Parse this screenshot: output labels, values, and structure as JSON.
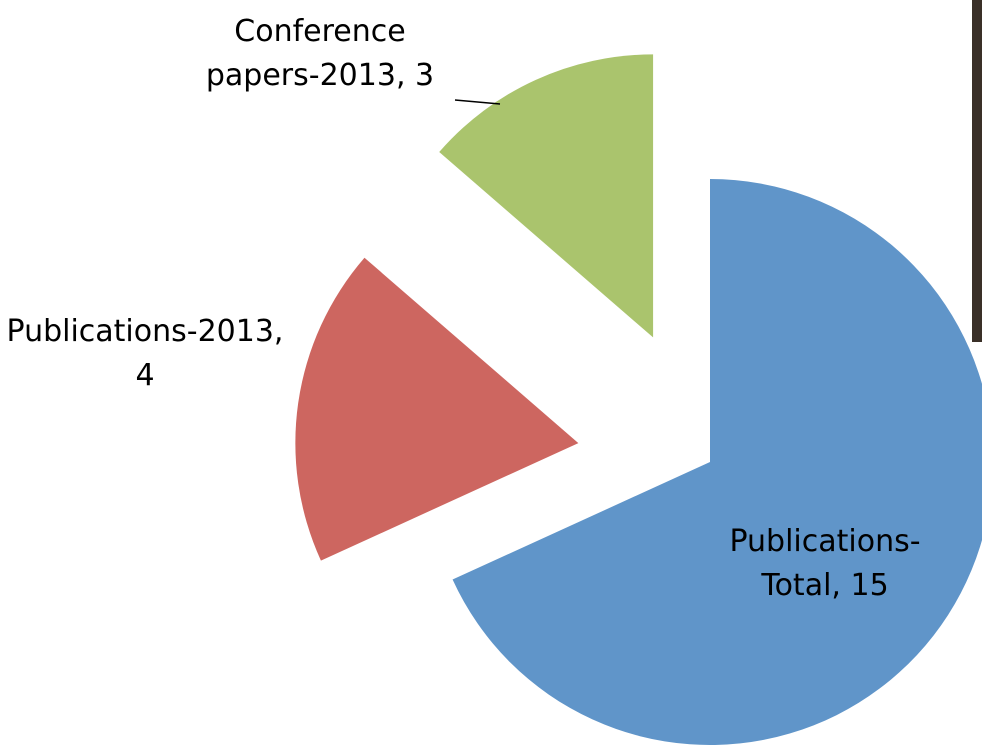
{
  "chart_data": {
    "type": "pie",
    "categories": [
      "Publications-Total",
      "Publications-2013",
      "Conference papers-2013"
    ],
    "values": [
      15,
      4,
      3
    ],
    "value_labels": [
      "Publications-Total, 15",
      "Publications-2013, 4",
      "Conference papers-2013, 3"
    ],
    "colors": [
      "#6095c9",
      "#cd6660",
      "#aac46d"
    ]
  }
}
